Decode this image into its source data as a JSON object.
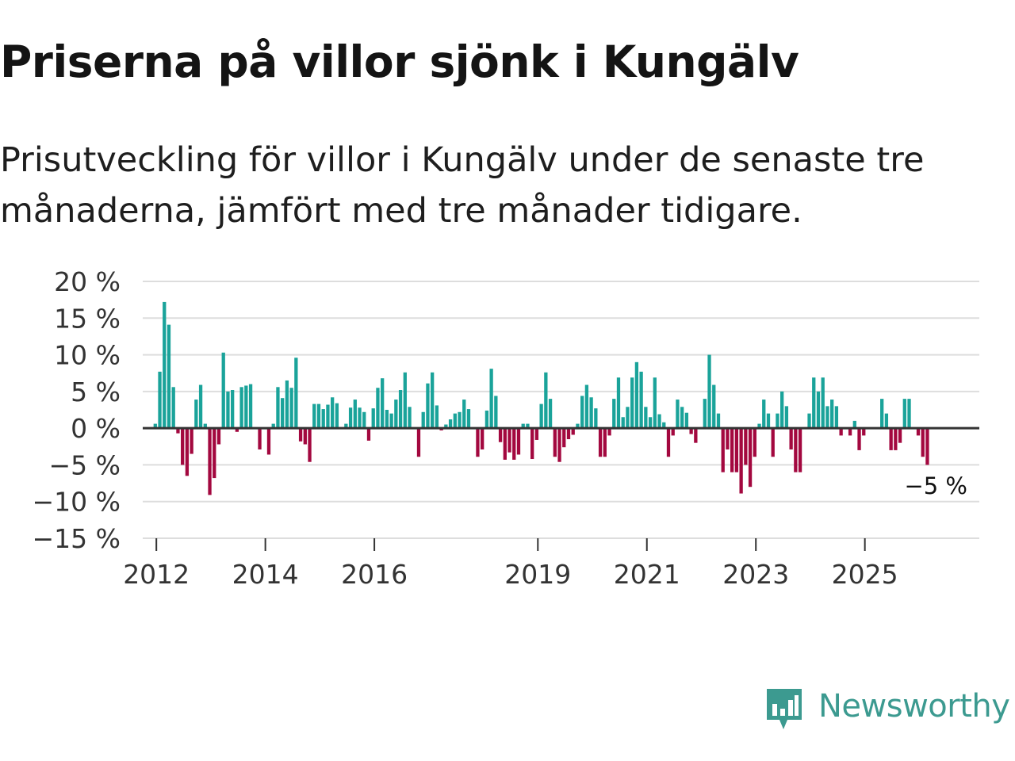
{
  "title": "Priserna på villor sjönk i Kungälv",
  "subtitle": "Prisutveckling för villor i Kungälv under de senaste tre månaderna, jämfört med tre månader tidigare.",
  "colors": {
    "positive": "#1aa39a",
    "negative": "#a3083f",
    "grid": "#dddddd",
    "zero": "#333333",
    "brand": "#3c9a90"
  },
  "brand": {
    "name": "Newsworthy",
    "icon": "newsworthy-bar-chart-icon"
  },
  "chart_data": {
    "type": "bar",
    "ylabel": "",
    "xlabel": "",
    "ylim": [
      -15,
      20
    ],
    "yticks": [
      20,
      15,
      10,
      5,
      0,
      -5,
      -10,
      -15
    ],
    "ytick_labels": [
      "20 %",
      "15 %",
      "10 %",
      "5 %",
      "0 %",
      "−5 %",
      "−10 %",
      "−15 %"
    ],
    "xticks": [
      2012,
      2014,
      2016,
      2019,
      2021,
      2023,
      2025
    ],
    "xtick_labels": [
      "2012",
      "2014",
      "2016",
      "2019",
      "2021",
      "2023",
      "2025"
    ],
    "x_range": [
      2011.75,
      2027.1
    ],
    "start_year": 2011.98,
    "step_years": 0.08333,
    "end_label": "−5 %",
    "values": [
      0.6,
      7.7,
      17.2,
      14.1,
      5.6,
      -0.7,
      -5.0,
      -6.5,
      -3.5,
      3.9,
      5.9,
      0.6,
      -9.1,
      -6.8,
      -2.2,
      10.3,
      5.0,
      5.2,
      -0.5,
      5.6,
      5.8,
      6.0,
      0,
      -2.9,
      0,
      -3.6,
      0.6,
      5.6,
      4.1,
      6.5,
      5.5,
      9.6,
      -1.8,
      -2.2,
      -4.6,
      3.3,
      3.3,
      2.6,
      3.2,
      4.2,
      3.4,
      0,
      0.6,
      2.8,
      3.9,
      2.8,
      2.2,
      -1.7,
      2.7,
      5.5,
      6.8,
      2.5,
      2.0,
      3.9,
      5.2,
      7.6,
      2.9,
      0,
      -3.9,
      2.2,
      6.1,
      7.6,
      3.1,
      -0.3,
      0.5,
      1.2,
      2.0,
      2.2,
      3.9,
      2.6,
      0,
      -3.9,
      -2.9,
      2.4,
      8.1,
      4.4,
      -1.9,
      -4.3,
      -3.3,
      -4.3,
      -3.6,
      0.6,
      0.6,
      -4.2,
      -1.6,
      3.3,
      7.6,
      4.0,
      -3.9,
      -4.6,
      -2.6,
      -1.5,
      -0.9,
      0.6,
      4.4,
      5.9,
      4.2,
      2.7,
      -3.9,
      -3.9,
      -1.0,
      4.0,
      6.9,
      1.5,
      2.9,
      6.9,
      9.0,
      7.7,
      2.9,
      1.5,
      6.9,
      1.9,
      0.8,
      -3.9,
      -1.0,
      3.9,
      2.9,
      2.1,
      -0.8,
      -2.0,
      0,
      4.0,
      10.0,
      5.9,
      2.0,
      -6.0,
      -2.9,
      -6.0,
      -6.0,
      -8.9,
      -5.0,
      -8.0,
      -3.9,
      0.6,
      3.9,
      2.0,
      -3.9,
      2.0,
      5.0,
      3.0,
      -2.9,
      -6.0,
      -6.0,
      0,
      2.0,
      6.9,
      5.0,
      6.9,
      3.0,
      3.9,
      3.0,
      -1.0,
      0,
      -1.0,
      1.0,
      -3.0,
      -1.0,
      0,
      0,
      0,
      4.0,
      2.0,
      -3.0,
      -3.0,
      -2.0,
      4.0,
      4.0,
      0,
      -1.0,
      -3.9,
      -5.0
    ]
  }
}
